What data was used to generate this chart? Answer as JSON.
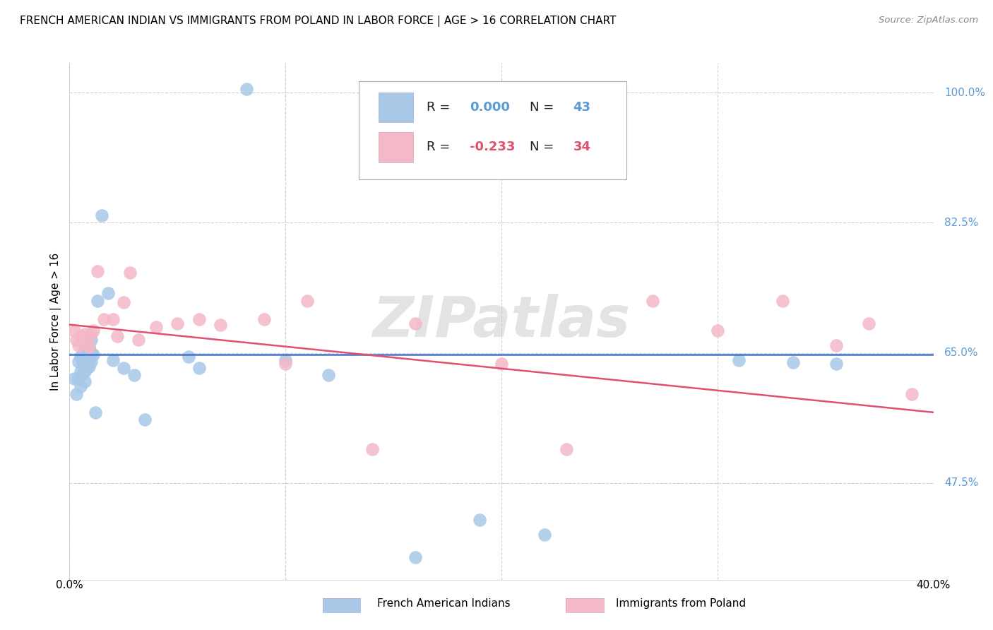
{
  "title": "FRENCH AMERICAN INDIAN VS IMMIGRANTS FROM POLAND IN LABOR FORCE | AGE > 16 CORRELATION CHART",
  "source": "Source: ZipAtlas.com",
  "ylabel": "In Labor Force | Age > 16",
  "ytick_labels": [
    "100.0%",
    "82.5%",
    "65.0%",
    "47.5%"
  ],
  "ytick_values": [
    1.0,
    0.825,
    0.65,
    0.475
  ],
  "xtick_labels": [
    "0.0%",
    "40.0%"
  ],
  "xtick_values": [
    0.0,
    0.4
  ],
  "xlim": [
    0.0,
    0.4
  ],
  "ylim": [
    0.345,
    1.04
  ],
  "blue_color": "#a8c8e8",
  "pink_color": "#f4b8c8",
  "blue_line_color": "#4472c4",
  "pink_line_color": "#e05070",
  "blue_x": [
    0.002,
    0.003,
    0.004,
    0.004,
    0.005,
    0.005,
    0.005,
    0.006,
    0.006,
    0.006,
    0.007,
    0.007,
    0.007,
    0.007,
    0.008,
    0.008,
    0.008,
    0.009,
    0.009,
    0.009,
    0.01,
    0.01,
    0.01,
    0.011,
    0.012,
    0.013,
    0.015,
    0.018,
    0.02,
    0.025,
    0.03,
    0.035,
    0.055,
    0.06,
    0.082,
    0.1,
    0.12,
    0.16,
    0.19,
    0.22,
    0.31,
    0.335,
    0.355
  ],
  "blue_y": [
    0.615,
    0.595,
    0.638,
    0.615,
    0.645,
    0.625,
    0.605,
    0.648,
    0.638,
    0.622,
    0.655,
    0.64,
    0.625,
    0.612,
    0.66,
    0.645,
    0.63,
    0.658,
    0.642,
    0.632,
    0.668,
    0.65,
    0.638,
    0.648,
    0.57,
    0.72,
    0.835,
    0.73,
    0.64,
    0.63,
    0.62,
    0.56,
    0.645,
    0.63,
    1.005,
    0.64,
    0.62,
    0.375,
    0.425,
    0.405,
    0.64,
    0.637,
    0.635
  ],
  "pink_x": [
    0.002,
    0.003,
    0.004,
    0.005,
    0.006,
    0.007,
    0.008,
    0.009,
    0.01,
    0.011,
    0.013,
    0.016,
    0.02,
    0.022,
    0.025,
    0.028,
    0.032,
    0.04,
    0.05,
    0.06,
    0.07,
    0.09,
    0.1,
    0.11,
    0.14,
    0.16,
    0.2,
    0.23,
    0.27,
    0.3,
    0.33,
    0.355,
    0.37,
    0.39
  ],
  "pink_y": [
    0.68,
    0.668,
    0.66,
    0.672,
    0.668,
    0.675,
    0.662,
    0.658,
    0.675,
    0.68,
    0.76,
    0.695,
    0.695,
    0.672,
    0.718,
    0.758,
    0.668,
    0.685,
    0.69,
    0.695,
    0.688,
    0.695,
    0.635,
    0.72,
    0.52,
    0.69,
    0.635,
    0.52,
    0.72,
    0.68,
    0.72,
    0.66,
    0.69,
    0.595
  ],
  "blue_trend_y0": 0.648,
  "blue_trend_y1": 0.648,
  "pink_trend_y0": 0.688,
  "pink_trend_y1": 0.57,
  "watermark": "ZIPatlas",
  "background_color": "#ffffff",
  "grid_color": "#d0d0d0",
  "legend_box_color": "#e8e8f8",
  "legend_pink_box_color": "#f8e8ee"
}
